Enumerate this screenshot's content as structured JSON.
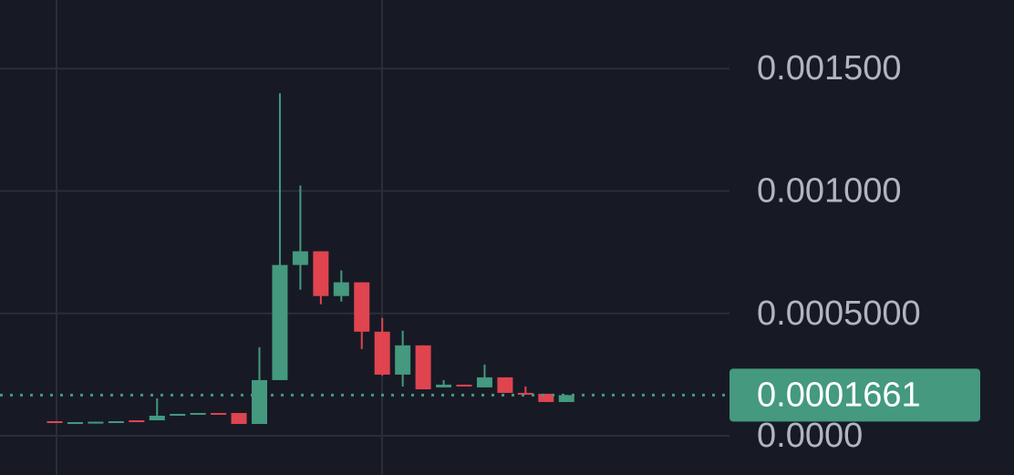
{
  "chart_data": {
    "type": "candlestick",
    "open": [
      5.97e-05,
      5.48e-05,
      5.6e-05,
      5.75e-05,
      6.34e-05,
      6.34e-05,
      8.21e-05,
      8.96e-05,
      9.33e-05,
      9.33e-05,
      4.85e-05,
      0.0002276,
      0.0006978,
      0.0007537,
      0.0005709,
      0.0006269,
      0.0004254,
      0.00025,
      0.0003694,
      0.0001978,
      0.000209,
      0.0001978,
      0.0002388,
      0.0001754,
      0.0001716,
      0.0001381
    ],
    "high": [
      5.97e-05,
      5.6e-05,
      5.75e-05,
      5.97e-05,
      6.34e-05,
      0.000153,
      8.96e-05,
      9.33e-05,
      9.33e-05,
      9.33e-05,
      0.0003619,
      0.0013993,
      0.0010224,
      0.0007537,
      0.0006754,
      0.0006269,
      0.0004813,
      0.0004291,
      0.0003694,
      0.0002276,
      0.000209,
      0.000291,
      0.0002388,
      0.0002015,
      0.0001716,
      0.0001679
    ],
    "low": [
      5.6e-05,
      5.48e-05,
      5.6e-05,
      5.75e-05,
      5.97e-05,
      6.34e-05,
      8.21e-05,
      8.96e-05,
      8.96e-05,
      4.85e-05,
      4.85e-05,
      0.0002276,
      0.000597,
      0.0005373,
      0.0005485,
      0.0003545,
      0.0002463,
      0.0002015,
      0.00019,
      0.0001978,
      0.0002015,
      0.0001978,
      0.0001754,
      0.0001679,
      0.0001381,
      0.0001381
    ],
    "close": [
      5.6e-05,
      5.6e-05,
      5.75e-05,
      5.97e-05,
      5.97e-05,
      8.21e-05,
      8.96e-05,
      9.33e-05,
      8.96e-05,
      4.85e-05,
      0.0002276,
      0.0006978,
      0.0007537,
      0.0005709,
      0.0006269,
      0.0004254,
      0.00025,
      0.0003694,
      0.00019,
      0.000209,
      0.0002015,
      0.0002388,
      0.0001754,
      0.0001679,
      0.0001381,
      0.0001661
    ],
    "up_color": "#44997f",
    "down_color": "#e0444f",
    "last_price": 0.0001661,
    "ylim": [
      -0.00016,
      0.00178
    ],
    "yticks": [
      {
        "value": 0,
        "label": "0.0000"
      },
      {
        "value": 0.0005,
        "label": "0.0005000"
      },
      {
        "value": 0.001,
        "label": "0.001000"
      },
      {
        "value": 0.0015,
        "label": "0.001500"
      }
    ],
    "grid": true
  }
}
